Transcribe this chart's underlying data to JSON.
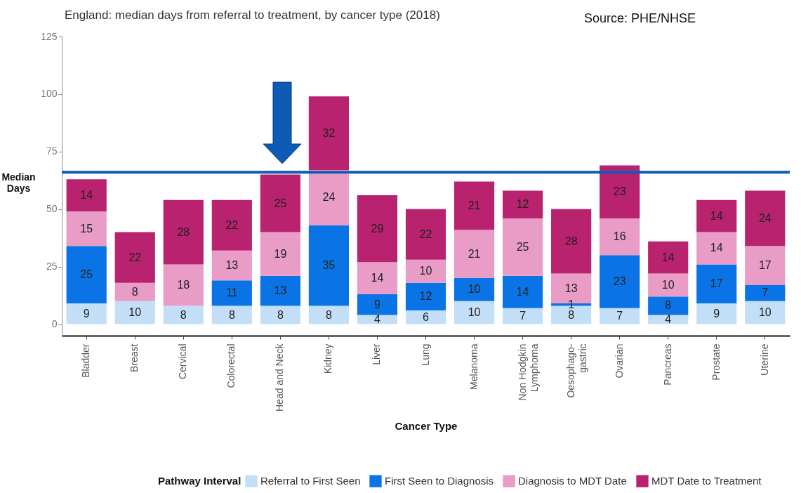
{
  "chart_data": {
    "type": "bar",
    "title": "England: median days from referral to treatment, by cancer type (2018)",
    "annotations": [
      "Source: PHE/NHSE"
    ],
    "xlabel": "Cancer Type",
    "ylabel": "Median Days",
    "legend_title": "Pathway Interval",
    "categories": [
      "Bladder",
      "Breast",
      "Cervical",
      "Colorectal",
      "Head and Neck",
      "Kidney",
      "Liver",
      "Lung",
      "Melanoma",
      "Non Hodgkin Lymphoma",
      "Oesophago-gastric",
      "Ovarian",
      "Pancreas",
      "Prostate",
      "Uterine"
    ],
    "stacked": true,
    "data_labels": true,
    "grid": false,
    "legend": "bottom",
    "ylim": [
      -5,
      125
    ],
    "yticks": [
      0,
      25,
      50,
      75,
      100,
      125
    ],
    "series": [
      {
        "name": "Referral to First Seen",
        "color": "#c3dff8",
        "values": [
          9,
          10,
          8,
          8,
          8,
          8,
          4,
          6,
          10,
          7,
          8,
          7,
          4,
          9,
          10
        ]
      },
      {
        "name": "First Seen to Diagnosis",
        "color": "#0a74e6",
        "values": [
          25,
          null,
          null,
          11,
          13,
          35,
          9,
          12,
          10,
          14,
          1,
          23,
          8,
          17,
          7
        ]
      },
      {
        "name": "Diagnosis to MDT Date",
        "color": "#e89cc6",
        "values": [
          15,
          8,
          18,
          13,
          19,
          24,
          14,
          10,
          21,
          25,
          13,
          16,
          10,
          14,
          17
        ]
      },
      {
        "name": "MDT Date to Treatment",
        "color": "#b8226f",
        "values": [
          14,
          22,
          28,
          22,
          25,
          32,
          29,
          22,
          21,
          12,
          28,
          23,
          14,
          14,
          24
        ]
      }
    ],
    "ref_lines": [
      {
        "axis": "y",
        "value": 66,
        "color": "#0d5bb5"
      }
    ]
  }
}
